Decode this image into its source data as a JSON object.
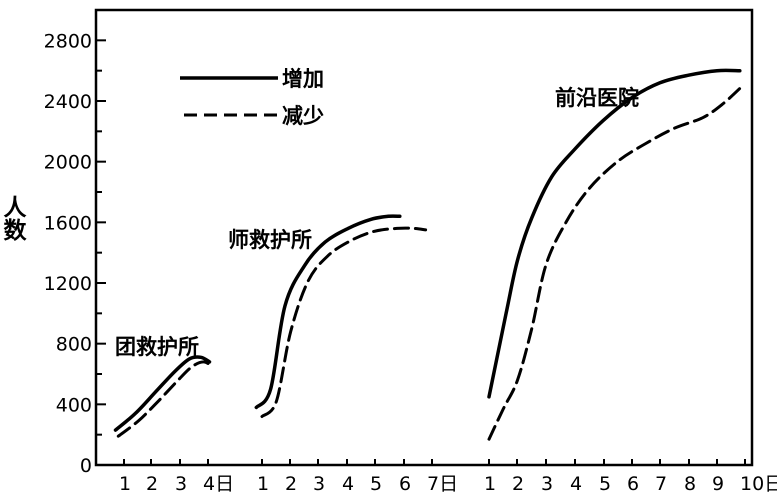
{
  "chart_data": {
    "type": "line",
    "ylabel": "人数",
    "ylim": [
      0,
      3000
    ],
    "yticks": [
      0,
      400,
      800,
      1200,
      1600,
      2000,
      2400,
      2800
    ],
    "legend": {
      "placement": "top-left",
      "entries": [
        {
          "label": "增加",
          "style": "solid"
        },
        {
          "label": "减少",
          "style": "dashed"
        }
      ]
    },
    "grid": false,
    "line_color": "#000000",
    "panels": [
      {
        "label": "团救护所",
        "x_ticks": [
          "1",
          "2",
          "3",
          "4日"
        ],
        "series": [
          {
            "name": "增加",
            "style": "solid",
            "x": [
              0.7,
              1.4,
              2.1,
              2.8,
              3.3,
              3.7,
              4.0
            ],
            "y": [
              230,
              340,
              480,
              620,
              700,
              710,
              680
            ]
          },
          {
            "name": "减少",
            "style": "dashed",
            "x": [
              0.8,
              1.5,
              2.2,
              2.9,
              3.4,
              3.8,
              4.1
            ],
            "y": [
              190,
              290,
              420,
              560,
              650,
              680,
              650
            ]
          }
        ]
      },
      {
        "label": "师救护所",
        "x_ticks": [
          "1",
          "2",
          "3",
          "4",
          "5",
          "6",
          "7日"
        ],
        "series": [
          {
            "name": "增加",
            "style": "solid",
            "x": [
              0.8,
              1.3,
              1.8,
              2.5,
              3.2,
              4.0,
              4.8,
              5.4,
              5.8
            ],
            "y": [
              380,
              500,
              1050,
              1320,
              1470,
              1560,
              1620,
              1640,
              1640
            ]
          },
          {
            "name": "减少",
            "style": "dashed",
            "x": [
              1.0,
              1.5,
              2.0,
              2.6,
              3.3,
              4.1,
              4.9,
              5.7,
              6.3,
              6.7
            ],
            "y": [
              320,
              420,
              880,
              1210,
              1380,
              1480,
              1540,
              1560,
              1560,
              1550
            ]
          }
        ]
      },
      {
        "label": "前沿医院",
        "x_ticks": [
          "1",
          "2",
          "3",
          "4",
          "5",
          "6",
          "7",
          "8",
          "9",
          "10日"
        ],
        "series": [
          {
            "name": "增加",
            "style": "solid",
            "x": [
              1.0,
              1.6,
              2.0,
              2.5,
              3.2,
              4.0,
              5.0,
              6.0,
              7.0,
              8.0,
              9.0,
              9.8
            ],
            "y": [
              450,
              1000,
              1350,
              1630,
              1900,
              2080,
              2270,
              2420,
              2520,
              2570,
              2600,
              2600
            ]
          },
          {
            "name": "减少",
            "style": "dashed",
            "x": [
              1.0,
              1.5,
              2.0,
              2.5,
              3.0,
              3.7,
              4.5,
              5.5,
              6.5,
              7.5,
              8.5,
              9.2,
              9.9
            ],
            "y": [
              170,
              370,
              560,
              900,
              1320,
              1600,
              1820,
              2000,
              2120,
              2220,
              2290,
              2380,
              2500
            ]
          }
        ]
      }
    ]
  }
}
